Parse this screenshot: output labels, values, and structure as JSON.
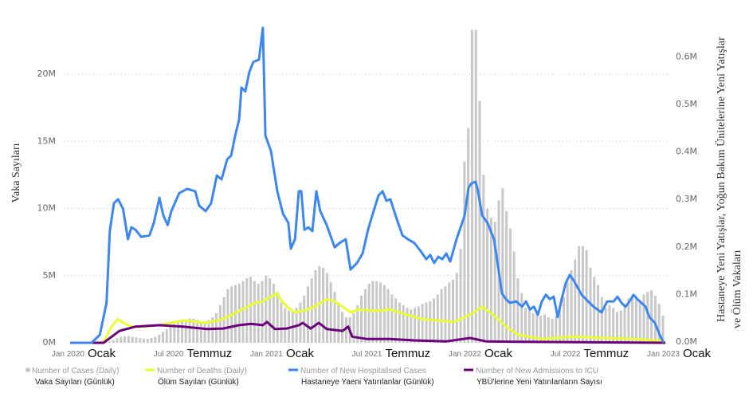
{
  "chart_data": {
    "type": "bar+line",
    "title": "",
    "colors": {
      "cases": "#c8c8c8",
      "deaths": "#eaff33",
      "hospital": "#3d86f0",
      "icu": "#6a007a",
      "grid": "#d0d0d0"
    },
    "x_unit": "months since Jan 2020",
    "x_ticks": [
      {
        "month": 0,
        "label": "Jan 2020",
        "tr": "Ocak"
      },
      {
        "month": 6,
        "label": "Jul 2020",
        "tr": "Temmuz"
      },
      {
        "month": 12,
        "label": "Jan 2021",
        "tr": "Ocak"
      },
      {
        "month": 18,
        "label": "Jul 2021",
        "tr": "Temmuz"
      },
      {
        "month": 24,
        "label": "Jan 2022",
        "tr": "Ocak"
      },
      {
        "month": 30,
        "label": "Jul 2022",
        "tr": "Temmuz"
      },
      {
        "month": 36,
        "label": "Jan 2023",
        "tr": "Ocak"
      }
    ],
    "y_left": {
      "label": "Vaka Sayıları",
      "ylim": [
        0,
        23.5
      ],
      "unit": "M",
      "ticks": [
        {
          "v": 0,
          "label": "0M"
        },
        {
          "v": 5,
          "label": "5M"
        },
        {
          "v": 10,
          "label": "10M"
        },
        {
          "v": 15,
          "label": "15M"
        },
        {
          "v": 20,
          "label": "20M"
        }
      ]
    },
    "y_right": {
      "label_line1": "Hastaneye Yeni Yatışlar, Yoğun Bakım Ünitelerine Yeni Yatışlar",
      "label_line2": "ve Ölüm Vakaları",
      "ylim": [
        0,
        0.66
      ],
      "unit": "M",
      "ticks": [
        {
          "v": 0,
          "label": "0.0M"
        },
        {
          "v": 0.1,
          "label": "0.1M"
        },
        {
          "v": 0.2,
          "label": "0.2M"
        },
        {
          "v": 0.3,
          "label": "0.3M"
        },
        {
          "v": 0.4,
          "label": "0.4M"
        },
        {
          "v": 0.5,
          "label": "0.5M"
        },
        {
          "v": 0.6,
          "label": "0.6M"
        }
      ]
    },
    "legend": [
      {
        "key": "cases",
        "en": "Number of Cases (Daily)",
        "tr": "Vaka Sayıları (Günlük)",
        "marker": "dot"
      },
      {
        "key": "deaths",
        "en": "Number of Deaths (Daily)",
        "tr": "Ölüm Sayıları (Günlük)",
        "marker": "line"
      },
      {
        "key": "hospital",
        "en": "Number of New Hospitalised Cases",
        "tr": "Hastaneye Yaeni Yatırılanlar (Günlük)",
        "marker": "line"
      },
      {
        "key": "icu",
        "en": "Number of New Admissions to ICU",
        "tr": "YBÜ'lerine Yeni Yatırılanların Sayısı",
        "marker": "line"
      }
    ],
    "legend_position": "bottom",
    "cases_weekly_M": [
      0,
      0,
      0,
      0,
      0,
      0,
      0,
      0,
      0.02,
      0.05,
      0.1,
      0.2,
      0.35,
      0.45,
      0.5,
      0.5,
      0.45,
      0.4,
      0.35,
      0.3,
      0.3,
      0.35,
      0.45,
      0.6,
      0.8,
      1.0,
      1.2,
      1.4,
      1.5,
      1.6,
      1.7,
      1.8,
      1.8,
      1.7,
      1.6,
      1.6,
      1.7,
      1.9,
      2.2,
      2.8,
      3.4,
      4.0,
      4.2,
      4.3,
      4.4,
      4.6,
      4.8,
      4.9,
      4.6,
      4.4,
      4.6,
      5.0,
      4.8,
      4.4,
      3.8,
      3.0,
      2.6,
      2.4,
      2.4,
      2.6,
      3.0,
      3.5,
      4.2,
      4.8,
      5.4,
      5.7,
      5.6,
      5.2,
      4.5,
      3.8,
      3.0,
      2.3,
      1.9,
      1.9,
      2.2,
      2.8,
      3.5,
      4.0,
      4.4,
      4.6,
      4.6,
      4.5,
      4.3,
      4.0,
      3.6,
      3.3,
      3.0,
      2.8,
      2.6,
      2.5,
      2.6,
      2.7,
      2.9,
      3.0,
      3.1,
      3.3,
      3.6,
      4.0,
      4.2,
      4.5,
      4.7,
      5.2,
      7.0,
      13.5,
      16.0,
      23.3,
      23.3,
      18.0,
      12.5,
      10.0,
      9.3,
      9.0,
      10.6,
      11.5,
      9.8,
      8.5,
      6.8,
      4.8,
      3.7,
      2.6,
      2.4,
      2.2,
      2.2,
      2.0,
      2.1,
      1.9,
      1.8,
      2.0,
      2.6,
      3.4,
      4.5,
      5.4,
      6.2,
      7.2,
      7.2,
      6.9,
      5.6,
      4.9,
      4.3,
      3.4,
      2.6,
      2.8,
      2.6,
      2.3,
      2.4,
      2.8,
      3.3,
      3.4,
      3.4,
      3.0,
      3.6,
      3.8,
      3.9,
      3.5,
      2.9,
      2.0
    ],
    "hospital_M": [
      [
        0,
        0
      ],
      [
        1.3,
        0
      ],
      [
        1.8,
        0.017
      ],
      [
        2.2,
        0.084
      ],
      [
        2.4,
        0.235
      ],
      [
        2.65,
        0.294
      ],
      [
        2.9,
        0.302
      ],
      [
        3.2,
        0.282
      ],
      [
        3.5,
        0.218
      ],
      [
        3.7,
        0.243
      ],
      [
        3.95,
        0.238
      ],
      [
        4.3,
        0.223
      ],
      [
        4.8,
        0.226
      ],
      [
        5.06,
        0.252
      ],
      [
        5.4,
        0.305
      ],
      [
        5.64,
        0.268
      ],
      [
        5.9,
        0.248
      ],
      [
        6.12,
        0.277
      ],
      [
        6.6,
        0.315
      ],
      [
        7.08,
        0.324
      ],
      [
        7.57,
        0.319
      ],
      [
        7.8,
        0.289
      ],
      [
        8.2,
        0.277
      ],
      [
        8.53,
        0.294
      ],
      [
        8.87,
        0.352
      ],
      [
        9.16,
        0.344
      ],
      [
        9.5,
        0.386
      ],
      [
        9.74,
        0.394
      ],
      [
        9.98,
        0.436
      ],
      [
        10.22,
        0.47
      ],
      [
        10.36,
        0.537
      ],
      [
        10.6,
        0.529
      ],
      [
        10.84,
        0.57
      ],
      [
        11.08,
        0.591
      ],
      [
        11.42,
        0.596
      ],
      [
        11.66,
        0.663
      ],
      [
        11.81,
        0.436
      ],
      [
        12.15,
        0.403
      ],
      [
        12.53,
        0.319
      ],
      [
        12.87,
        0.272
      ],
      [
        13.2,
        0.252
      ],
      [
        13.35,
        0.198
      ],
      [
        13.6,
        0.218
      ],
      [
        13.83,
        0.319
      ],
      [
        13.98,
        0.319
      ],
      [
        14.17,
        0.238
      ],
      [
        14.41,
        0.243
      ],
      [
        14.65,
        0.235
      ],
      [
        14.89,
        0.319
      ],
      [
        15.13,
        0.277
      ],
      [
        15.52,
        0.248
      ],
      [
        16.0,
        0.201
      ],
      [
        16.34,
        0.211
      ],
      [
        16.67,
        0.218
      ],
      [
        16.96,
        0.154
      ],
      [
        17.35,
        0.168
      ],
      [
        17.69,
        0.188
      ],
      [
        18.02,
        0.238
      ],
      [
        18.31,
        0.272
      ],
      [
        18.65,
        0.31
      ],
      [
        18.9,
        0.319
      ],
      [
        19.13,
        0.299
      ],
      [
        19.37,
        0.302
      ],
      [
        19.76,
        0.26
      ],
      [
        20.1,
        0.226
      ],
      [
        20.43,
        0.218
      ],
      [
        20.82,
        0.21
      ],
      [
        21.2,
        0.193
      ],
      [
        21.54,
        0.176
      ],
      [
        21.78,
        0.185
      ],
      [
        22.02,
        0.168
      ],
      [
        22.27,
        0.181
      ],
      [
        22.51,
        0.176
      ],
      [
        22.75,
        0.188
      ],
      [
        22.99,
        0.171
      ],
      [
        23.37,
        0.218
      ],
      [
        23.86,
        0.268
      ],
      [
        24.1,
        0.327
      ],
      [
        24.29,
        0.336
      ],
      [
        24.53,
        0.339
      ],
      [
        24.67,
        0.319
      ],
      [
        24.92,
        0.268
      ],
      [
        25.25,
        0.252
      ],
      [
        25.64,
        0.218
      ],
      [
        25.88,
        0.161
      ],
      [
        26.12,
        0.104
      ],
      [
        26.36,
        0.092
      ],
      [
        26.6,
        0.084
      ],
      [
        26.99,
        0.087
      ],
      [
        27.33,
        0.076
      ],
      [
        27.57,
        0.087
      ],
      [
        27.81,
        0.07
      ],
      [
        28.05,
        0.076
      ],
      [
        28.29,
        0.059
      ],
      [
        28.53,
        0.087
      ],
      [
        28.77,
        0.101
      ],
      [
        29.01,
        0.092
      ],
      [
        29.25,
        0.097
      ],
      [
        29.49,
        0.054
      ],
      [
        29.73,
        0.092
      ],
      [
        29.98,
        0.126
      ],
      [
        30.22,
        0.143
      ],
      [
        30.46,
        0.131
      ],
      [
        30.94,
        0.101
      ],
      [
        31.33,
        0.087
      ],
      [
        31.66,
        0.076
      ],
      [
        32.14,
        0.064
      ],
      [
        32.48,
        0.087
      ],
      [
        32.87,
        0.087
      ],
      [
        33.11,
        0.097
      ],
      [
        33.35,
        0.084
      ],
      [
        33.59,
        0.076
      ],
      [
        33.83,
        0.087
      ],
      [
        34.07,
        0.101
      ],
      [
        34.31,
        0.092
      ],
      [
        34.55,
        0.084
      ],
      [
        34.8,
        0.076
      ],
      [
        35.04,
        0.054
      ],
      [
        35.37,
        0.042
      ],
      [
        35.66,
        0.017
      ],
      [
        35.9,
        0
      ]
    ],
    "deaths_M": [
      [
        0,
        0
      ],
      [
        2.0,
        0
      ],
      [
        2.5,
        0.034
      ],
      [
        2.89,
        0.05
      ],
      [
        3.23,
        0.042
      ],
      [
        3.71,
        0.034
      ],
      [
        4.43,
        0.034
      ],
      [
        5.4,
        0.037
      ],
      [
        6.84,
        0.047
      ],
      [
        8.29,
        0.042
      ],
      [
        9.25,
        0.05
      ],
      [
        10.22,
        0.067
      ],
      [
        11.18,
        0.084
      ],
      [
        11.66,
        0.087
      ],
      [
        12.15,
        0.097
      ],
      [
        12.53,
        0.104
      ],
      [
        12.72,
        0.092
      ],
      [
        13.11,
        0.076
      ],
      [
        13.59,
        0.064
      ],
      [
        14.07,
        0.067
      ],
      [
        14.8,
        0.076
      ],
      [
        15.52,
        0.092
      ],
      [
        16.0,
        0.087
      ],
      [
        16.48,
        0.076
      ],
      [
        16.96,
        0.064
      ],
      [
        17.45,
        0.07
      ],
      [
        18.41,
        0.067
      ],
      [
        19.37,
        0.07
      ],
      [
        20.34,
        0.059
      ],
      [
        21.3,
        0.05
      ],
      [
        22.27,
        0.047
      ],
      [
        23.23,
        0.044
      ],
      [
        24.19,
        0.059
      ],
      [
        24.92,
        0.076
      ],
      [
        25.4,
        0.064
      ],
      [
        25.88,
        0.05
      ],
      [
        26.36,
        0.034
      ],
      [
        27.08,
        0.017
      ],
      [
        28.53,
        0.008
      ],
      [
        30.46,
        0.013
      ],
      [
        32.39,
        0.01
      ],
      [
        34.31,
        0.008
      ],
      [
        36,
        0.003
      ]
    ],
    "icu_M": [
      [
        0,
        0
      ],
      [
        2.02,
        0
      ],
      [
        2.99,
        0.025
      ],
      [
        3.95,
        0.034
      ],
      [
        5.4,
        0.037
      ],
      [
        6.84,
        0.034
      ],
      [
        8.29,
        0.029
      ],
      [
        9.25,
        0.03
      ],
      [
        10.22,
        0.037
      ],
      [
        10.94,
        0.04
      ],
      [
        11.66,
        0.037
      ],
      [
        11.9,
        0.044
      ],
      [
        12.39,
        0.029
      ],
      [
        13.11,
        0.03
      ],
      [
        13.83,
        0.037
      ],
      [
        14.07,
        0.042
      ],
      [
        14.55,
        0.03
      ],
      [
        15.04,
        0.042
      ],
      [
        15.52,
        0.029
      ],
      [
        16.48,
        0.025
      ],
      [
        16.82,
        0.034
      ],
      [
        17.06,
        0.013
      ],
      [
        17.93,
        0.008
      ],
      [
        19.37,
        0.008
      ],
      [
        20.82,
        0.005
      ],
      [
        22.75,
        0.003
      ],
      [
        24.19,
        0.01
      ],
      [
        25.16,
        0.003
      ],
      [
        27.08,
        0.002
      ],
      [
        36,
        0
      ]
    ]
  }
}
